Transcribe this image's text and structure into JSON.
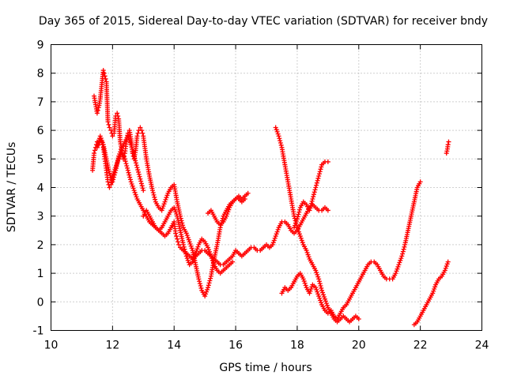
{
  "chart_data": {
    "type": "scatter",
    "title": "Day 365 of 2015, Sidereal Day-to-day VTEC variation (SDTVAR) for receiver bndy",
    "xlabel": "GPS time / hours",
    "ylabel": "SDTVAR / TECUs",
    "xlim": [
      10,
      24
    ],
    "ylim": [
      -1,
      9
    ],
    "xticks": [
      "10",
      "12",
      "14",
      "16",
      "18",
      "20",
      "22",
      "24"
    ],
    "yticks": [
      "-1",
      "0",
      "1",
      "2",
      "3",
      "4",
      "5",
      "6",
      "7",
      "8",
      "9"
    ],
    "grid": true,
    "marker": "plus",
    "color": "#ff0000",
    "series": [
      {
        "x": [
          11.35,
          11.4,
          11.45,
          11.5,
          11.55,
          11.6,
          11.65,
          11.7,
          11.75,
          11.8,
          11.85,
          11.9,
          11.95,
          12.0,
          12.1,
          12.2,
          12.3,
          12.4,
          12.5,
          12.6,
          12.7,
          12.8,
          12.9,
          13.0,
          13.1,
          13.2,
          13.3,
          13.4,
          13.5,
          13.6,
          13.7,
          13.8,
          13.9,
          14.0,
          14.05,
          14.1,
          14.15,
          14.2,
          14.3,
          14.4,
          14.5,
          14.6,
          14.7,
          14.8,
          14.9,
          15.0,
          15.1,
          15.2,
          15.3,
          15.4,
          15.5,
          15.6,
          15.7,
          15.8,
          15.9,
          16.0,
          16.1,
          16.2,
          16.3,
          16.4,
          16.5,
          16.6,
          16.7,
          16.8,
          16.9,
          17.0,
          17.1,
          17.2,
          17.3,
          17.4,
          17.5,
          17.6,
          17.7,
          17.8,
          17.9,
          18.0,
          18.1,
          18.2,
          18.3,
          18.4,
          18.5,
          18.6,
          18.7,
          18.8,
          18.9,
          19.0
        ],
        "y": [
          4.6,
          5.2,
          5.4,
          5.6,
          5.5,
          5.7,
          5.6,
          5.4,
          5.0,
          4.6,
          4.2,
          4.0,
          4.1,
          4.4,
          4.7,
          5.0,
          5.2,
          5.0,
          4.6,
          4.2,
          3.9,
          3.6,
          3.4,
          3.2,
          3.0,
          2.8,
          2.7,
          2.6,
          2.5,
          2.4,
          2.3,
          2.4,
          2.6,
          2.8,
          2.4,
          2.2,
          2.0,
          1.9,
          1.8,
          1.7,
          1.6,
          1.5,
          1.6,
          1.7,
          1.8,
          1.8,
          1.7,
          1.6,
          1.5,
          1.4,
          1.3,
          1.3,
          1.4,
          1.5,
          1.6,
          1.8,
          1.7,
          1.6,
          1.7,
          1.8,
          1.9,
          1.9,
          1.8,
          1.8,
          1.9,
          2.0,
          1.9,
          2.0,
          2.3,
          2.6,
          2.8,
          2.8,
          2.7,
          2.5,
          2.4,
          2.5,
          2.7,
          2.9,
          3.1,
          3.3,
          3.4,
          3.3,
          3.2,
          3.2,
          3.3,
          3.2
        ]
      },
      {
        "x": [
          11.4,
          11.45,
          11.5,
          11.55,
          11.6,
          11.65,
          11.7,
          11.75,
          11.8,
          11.85,
          11.9,
          11.95,
          12.0,
          12.05,
          12.1,
          12.15,
          12.2,
          12.25,
          12.3,
          12.35,
          12.4,
          12.45,
          12.5,
          12.55,
          12.6,
          12.65,
          12.7,
          12.75,
          12.8,
          12.85,
          12.9,
          12.95,
          13.0,
          13.1,
          13.2,
          13.3,
          13.4,
          13.5,
          13.6,
          13.7,
          13.8,
          13.9,
          14.0,
          14.1,
          14.2,
          14.3,
          14.4,
          14.5,
          14.6,
          14.7,
          14.8,
          14.9,
          15.0,
          15.1,
          15.2,
          15.3,
          15.4,
          15.5,
          15.6,
          15.7,
          15.8,
          15.9,
          16.0,
          16.1,
          16.2,
          16.3
        ],
        "y": [
          7.2,
          6.9,
          6.6,
          6.8,
          7.1,
          7.6,
          8.1,
          7.9,
          7.7,
          6.3,
          6.1,
          6.0,
          5.8,
          5.9,
          6.5,
          6.6,
          6.4,
          5.6,
          5.3,
          5.0,
          5.2,
          5.6,
          5.9,
          6.0,
          5.7,
          5.2,
          5.0,
          5.3,
          5.8,
          6.0,
          6.1,
          6.0,
          5.8,
          5.0,
          4.4,
          3.9,
          3.5,
          3.3,
          3.2,
          3.5,
          3.8,
          4.0,
          4.1,
          3.5,
          3.0,
          2.6,
          2.4,
          2.1,
          1.8,
          1.3,
          0.8,
          0.4,
          0.2,
          0.5,
          0.9,
          1.5,
          2.0,
          2.6,
          3.0,
          3.2,
          3.4,
          3.5,
          3.6,
          3.6,
          3.5,
          3.6
        ]
      },
      {
        "x": [
          11.5,
          11.6,
          11.7,
          11.8,
          11.9,
          12.0,
          12.1,
          12.2,
          12.3,
          12.4,
          12.5,
          12.6,
          12.7,
          12.8,
          12.9,
          13.0
        ],
        "y": [
          5.4,
          5.8,
          5.5,
          5.0,
          4.5,
          4.2,
          4.6,
          5.1,
          5.4,
          5.6,
          5.8,
          5.5,
          5.1,
          4.7,
          4.3,
          3.9
        ]
      },
      {
        "x": [
          13.0,
          13.1,
          13.2,
          13.3,
          13.4,
          13.5,
          13.6,
          13.7,
          13.8,
          13.9,
          14.0,
          14.1,
          14.2,
          14.3,
          14.4,
          14.5,
          14.6,
          14.7,
          14.8,
          14.9,
          15.0,
          15.1,
          15.2,
          15.3,
          15.4,
          15.5,
          15.6,
          15.7,
          15.8,
          15.9
        ],
        "y": [
          3.0,
          3.2,
          3.0,
          2.8,
          2.6,
          2.5,
          2.6,
          2.8,
          3.0,
          3.2,
          3.3,
          3.0,
          2.5,
          2.0,
          1.6,
          1.3,
          1.4,
          1.7,
          2.0,
          2.2,
          2.1,
          1.9,
          1.6,
          1.3,
          1.1,
          1.0,
          1.1,
          1.2,
          1.3,
          1.4
        ]
      },
      {
        "x": [
          15.1,
          15.2,
          15.3,
          15.4,
          15.5,
          15.6,
          15.7,
          15.8,
          15.9,
          16.0,
          16.1,
          16.2,
          16.3,
          16.4
        ],
        "y": [
          3.1,
          3.2,
          3.0,
          2.8,
          2.7,
          2.8,
          3.0,
          3.3,
          3.5,
          3.6,
          3.7,
          3.6,
          3.7,
          3.8
        ]
      },
      {
        "x": [
          17.3,
          17.4,
          17.5,
          17.6,
          17.7,
          17.8,
          17.9,
          18.0,
          18.1,
          18.2,
          18.3,
          18.4,
          18.5,
          18.6,
          18.7,
          18.8,
          18.9,
          19.0,
          19.1,
          19.2,
          19.3,
          19.4,
          19.5,
          19.6,
          19.7,
          19.8,
          19.9,
          20.0
        ],
        "y": [
          6.1,
          5.8,
          5.4,
          4.8,
          4.2,
          3.6,
          3.0,
          2.6,
          2.3,
          2.0,
          1.8,
          1.5,
          1.3,
          1.1,
          0.8,
          0.4,
          0.1,
          -0.2,
          -0.4,
          -0.6,
          -0.7,
          -0.6,
          -0.5,
          -0.6,
          -0.7,
          -0.6,
          -0.5,
          -0.6
        ]
      },
      {
        "x": [
          17.9,
          18.0,
          18.1,
          18.2,
          18.3,
          18.4,
          18.5,
          18.6,
          18.7,
          18.8,
          18.9,
          19.0
        ],
        "y": [
          2.6,
          2.9,
          3.3,
          3.5,
          3.4,
          3.2,
          3.6,
          4.0,
          4.4,
          4.8,
          4.9,
          4.9
        ]
      },
      {
        "x": [
          17.5,
          17.6,
          17.7,
          17.8,
          17.9,
          18.0,
          18.1,
          18.2,
          18.3,
          18.4,
          18.5,
          18.6,
          18.7,
          18.8,
          18.9,
          19.0,
          19.1,
          19.2,
          19.3,
          19.4,
          19.5,
          19.6,
          19.7,
          19.8,
          19.9,
          20.0,
          20.1,
          20.2,
          20.3,
          20.4,
          20.5,
          20.6,
          20.7,
          20.8,
          20.9,
          21.0,
          21.1,
          21.2,
          21.3,
          21.4,
          21.5,
          21.6,
          21.7,
          21.8,
          21.9,
          22.0
        ],
        "y": [
          0.3,
          0.5,
          0.4,
          0.5,
          0.7,
          0.9,
          1.0,
          0.8,
          0.5,
          0.3,
          0.6,
          0.5,
          0.2,
          -0.1,
          -0.3,
          -0.4,
          -0.3,
          -0.5,
          -0.6,
          -0.4,
          -0.2,
          -0.1,
          0.1,
          0.3,
          0.5,
          0.7,
          0.9,
          1.1,
          1.3,
          1.4,
          1.4,
          1.3,
          1.1,
          0.9,
          0.8,
          0.8,
          0.8,
          1.0,
          1.3,
          1.6,
          2.0,
          2.5,
          3.0,
          3.5,
          4.0,
          4.2
        ]
      },
      {
        "x": [
          21.8,
          21.9,
          22.0,
          22.1,
          22.2,
          22.3,
          22.4,
          22.5,
          22.6,
          22.7,
          22.8,
          22.9
        ],
        "y": [
          -0.8,
          -0.7,
          -0.5,
          -0.3,
          -0.1,
          0.1,
          0.3,
          0.6,
          0.8,
          0.9,
          1.1,
          1.4
        ]
      },
      {
        "x": [
          22.85,
          22.88,
          22.9,
          22.92
        ],
        "y": [
          5.2,
          5.35,
          5.5,
          5.6
        ]
      }
    ]
  }
}
